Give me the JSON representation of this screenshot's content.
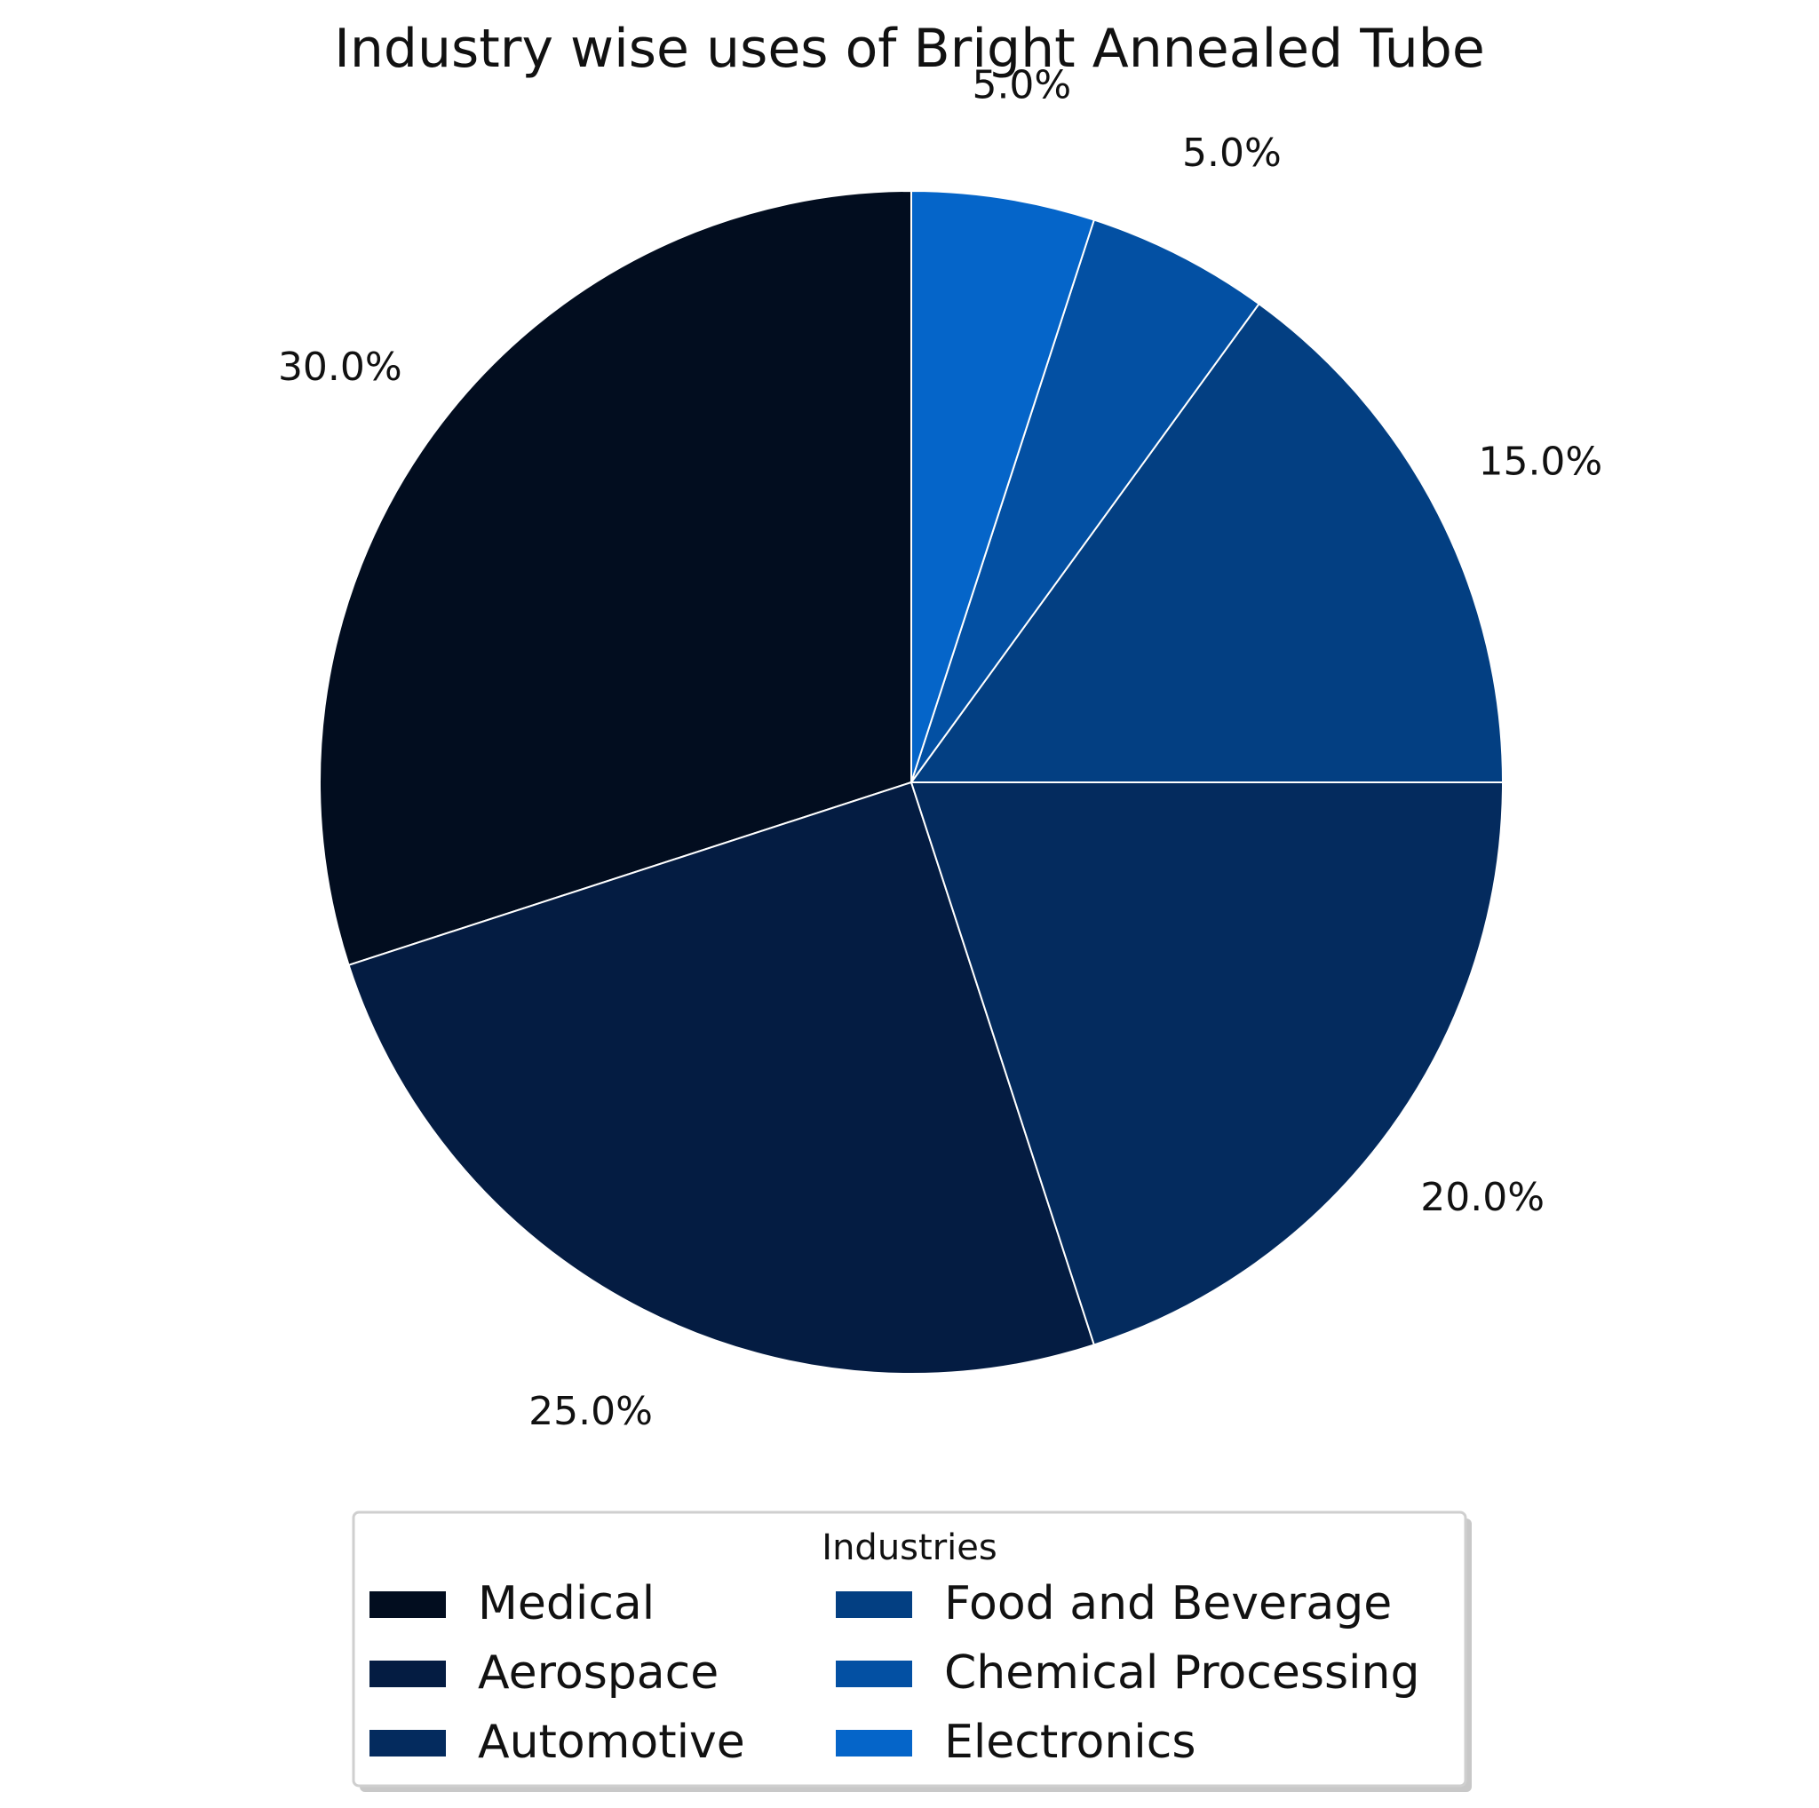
{
  "chart_data": {
    "type": "pie",
    "title": "Industry wise uses of Bright Annealed Tube",
    "legend_title": "Industries",
    "legend_position": "bottom",
    "start_angle_deg": 90,
    "direction": "counterclockwise",
    "slices": [
      {
        "label": "Medical",
        "value": 30.0,
        "pct_label": "30.0%",
        "color": "#020d1f"
      },
      {
        "label": "Aerospace",
        "value": 25.0,
        "pct_label": "25.0%",
        "color": "#041c42"
      },
      {
        "label": "Automotive",
        "value": 20.0,
        "pct_label": "20.0%",
        "color": "#042b5e"
      },
      {
        "label": "Food and Beverage",
        "value": 15.0,
        "pct_label": "15.0%",
        "color": "#033f82"
      },
      {
        "label": "Chemical Processing",
        "value": 5.0,
        "pct_label": "5.0%",
        "color": "#0350a3"
      },
      {
        "label": "Electronics",
        "value": 5.0,
        "pct_label": "5.0%",
        "color": "#0565c9"
      }
    ]
  }
}
